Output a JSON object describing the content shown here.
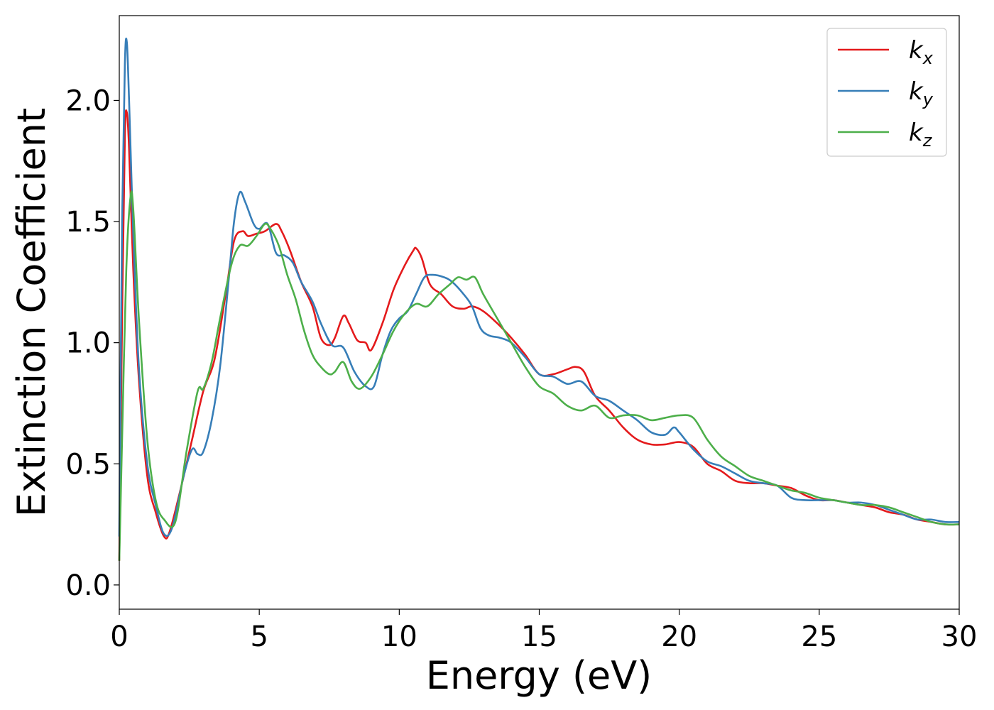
{
  "chart_data": {
    "type": "line",
    "xlabel": "Energy (eV)",
    "ylabel": "Extinction Coefficient",
    "xlim": [
      0,
      30
    ],
    "ylim": [
      -0.1,
      2.35
    ],
    "xticks": [
      0,
      5,
      10,
      15,
      20,
      25,
      30
    ],
    "xtick_labels": [
      "0",
      "5",
      "10",
      "15",
      "20",
      "25",
      "30"
    ],
    "yticks": [
      0.0,
      0.5,
      1.0,
      1.5,
      2.0
    ],
    "ytick_labels": [
      "0.0",
      "0.5",
      "1.0",
      "1.5",
      "2.0"
    ],
    "grid": false,
    "legend_position": "top-right",
    "series": [
      {
        "name": "k_x",
        "label_base": "k",
        "label_sub": "x",
        "color": "#e41a1c",
        "x": [
          0,
          0.1,
          0.2,
          0.27,
          0.35,
          0.5,
          0.7,
          1.0,
          1.3,
          1.6,
          1.8,
          2.2,
          2.6,
          3.0,
          3.4,
          3.8,
          4.1,
          4.4,
          4.6,
          4.9,
          5.2,
          5.6,
          5.8,
          6.1,
          6.5,
          6.9,
          7.2,
          7.5,
          7.7,
          8.0,
          8.2,
          8.5,
          8.8,
          9.0,
          9.4,
          9.8,
          10.2,
          10.5,
          10.6,
          10.8,
          11.1,
          11.5,
          11.9,
          12.3,
          12.6,
          13.0,
          13.5,
          14.0,
          14.5,
          15.0,
          15.5,
          16.0,
          16.3,
          16.6,
          17.0,
          17.5,
          18.0,
          18.5,
          19.0,
          19.5,
          20.0,
          20.5,
          21.0,
          21.5,
          22.0,
          22.5,
          23.0,
          23.5,
          24.0,
          24.5,
          25.0,
          25.5,
          26.0,
          26.5,
          27.0,
          27.5,
          28.0,
          28.5,
          29.0,
          29.5,
          30.0
        ],
        "y": [
          0.1,
          1.1,
          1.85,
          1.95,
          1.8,
          1.3,
          0.85,
          0.45,
          0.3,
          0.2,
          0.22,
          0.4,
          0.6,
          0.8,
          0.93,
          1.2,
          1.42,
          1.46,
          1.44,
          1.45,
          1.46,
          1.49,
          1.46,
          1.38,
          1.25,
          1.15,
          1.02,
          0.99,
          1.02,
          1.11,
          1.08,
          1.01,
          1.0,
          0.97,
          1.08,
          1.22,
          1.32,
          1.38,
          1.39,
          1.35,
          1.24,
          1.2,
          1.15,
          1.14,
          1.15,
          1.13,
          1.08,
          1.02,
          0.95,
          0.87,
          0.87,
          0.89,
          0.9,
          0.88,
          0.78,
          0.72,
          0.65,
          0.6,
          0.58,
          0.58,
          0.59,
          0.57,
          0.5,
          0.47,
          0.43,
          0.42,
          0.42,
          0.41,
          0.4,
          0.37,
          0.35,
          0.35,
          0.34,
          0.33,
          0.32,
          0.3,
          0.29,
          0.27,
          0.26,
          0.25,
          0.25
        ]
      },
      {
        "name": "k_y",
        "label_base": "k",
        "label_sub": "y",
        "color": "#377eb8",
        "x": [
          0,
          0.1,
          0.2,
          0.27,
          0.35,
          0.5,
          0.7,
          1.0,
          1.3,
          1.6,
          1.9,
          2.3,
          2.6,
          2.8,
          3.0,
          3.3,
          3.6,
          3.9,
          4.1,
          4.3,
          4.5,
          4.8,
          5.0,
          5.3,
          5.6,
          5.9,
          6.2,
          6.5,
          6.9,
          7.2,
          7.6,
          8.0,
          8.4,
          8.8,
          9.1,
          9.4,
          9.7,
          10.0,
          10.3,
          10.6,
          10.9,
          11.2,
          11.6,
          11.9,
          12.3,
          12.6,
          12.9,
          13.2,
          13.6,
          14.0,
          14.5,
          15.0,
          15.5,
          16.0,
          16.5,
          17.0,
          17.5,
          18.0,
          18.5,
          19.0,
          19.5,
          19.8,
          20.0,
          20.5,
          21.0,
          21.5,
          22.0,
          22.5,
          23.0,
          23.5,
          24.0,
          24.5,
          25.0,
          25.5,
          26.0,
          26.5,
          27.0,
          27.5,
          28.0,
          28.5,
          29.0,
          29.5,
          30.0
        ],
        "y": [
          0.2,
          1.5,
          2.15,
          2.24,
          2.0,
          1.45,
          0.9,
          0.5,
          0.33,
          0.21,
          0.24,
          0.45,
          0.56,
          0.54,
          0.55,
          0.68,
          0.9,
          1.25,
          1.5,
          1.62,
          1.58,
          1.49,
          1.47,
          1.49,
          1.37,
          1.36,
          1.33,
          1.25,
          1.17,
          1.08,
          0.99,
          0.98,
          0.88,
          0.82,
          0.82,
          0.95,
          1.05,
          1.1,
          1.13,
          1.2,
          1.27,
          1.28,
          1.27,
          1.25,
          1.2,
          1.15,
          1.06,
          1.03,
          1.02,
          1.0,
          0.94,
          0.87,
          0.86,
          0.83,
          0.84,
          0.78,
          0.76,
          0.72,
          0.68,
          0.63,
          0.62,
          0.65,
          0.63,
          0.56,
          0.51,
          0.49,
          0.46,
          0.43,
          0.42,
          0.41,
          0.36,
          0.35,
          0.35,
          0.35,
          0.34,
          0.34,
          0.33,
          0.31,
          0.29,
          0.27,
          0.27,
          0.26,
          0.26
        ]
      },
      {
        "name": "k_z",
        "label_base": "k",
        "label_sub": "z",
        "color": "#4daf4a",
        "x": [
          0,
          0.1,
          0.25,
          0.4,
          0.5,
          0.7,
          1.0,
          1.3,
          1.6,
          2.0,
          2.4,
          2.8,
          3.0,
          3.3,
          3.6,
          4.0,
          4.3,
          4.6,
          4.9,
          5.2,
          5.4,
          5.7,
          6.0,
          6.3,
          6.6,
          6.9,
          7.2,
          7.5,
          7.7,
          8.0,
          8.3,
          8.6,
          9.0,
          9.4,
          9.8,
          10.2,
          10.6,
          11.0,
          11.4,
          11.8,
          12.1,
          12.4,
          12.7,
          13.0,
          13.5,
          14.0,
          14.5,
          15.0,
          15.5,
          16.0,
          16.5,
          17.0,
          17.5,
          18.0,
          18.5,
          19.0,
          19.5,
          20.0,
          20.5,
          21.0,
          21.5,
          22.0,
          22.5,
          23.0,
          23.5,
          24.0,
          24.5,
          25.0,
          25.5,
          26.0,
          26.5,
          27.0,
          27.5,
          28.0,
          28.5,
          29.0,
          29.5,
          30.0
        ],
        "y": [
          0.1,
          0.6,
          1.3,
          1.6,
          1.55,
          1.1,
          0.6,
          0.35,
          0.27,
          0.26,
          0.55,
          0.8,
          0.81,
          0.92,
          1.1,
          1.32,
          1.4,
          1.4,
          1.44,
          1.49,
          1.47,
          1.4,
          1.28,
          1.18,
          1.05,
          0.95,
          0.9,
          0.87,
          0.88,
          0.92,
          0.84,
          0.81,
          0.86,
          0.95,
          1.05,
          1.12,
          1.16,
          1.15,
          1.2,
          1.24,
          1.27,
          1.26,
          1.27,
          1.2,
          1.1,
          1.0,
          0.9,
          0.82,
          0.79,
          0.74,
          0.72,
          0.74,
          0.69,
          0.7,
          0.7,
          0.68,
          0.69,
          0.7,
          0.69,
          0.6,
          0.53,
          0.49,
          0.45,
          0.43,
          0.41,
          0.39,
          0.38,
          0.36,
          0.35,
          0.34,
          0.33,
          0.33,
          0.32,
          0.3,
          0.28,
          0.26,
          0.25,
          0.25
        ]
      }
    ]
  }
}
